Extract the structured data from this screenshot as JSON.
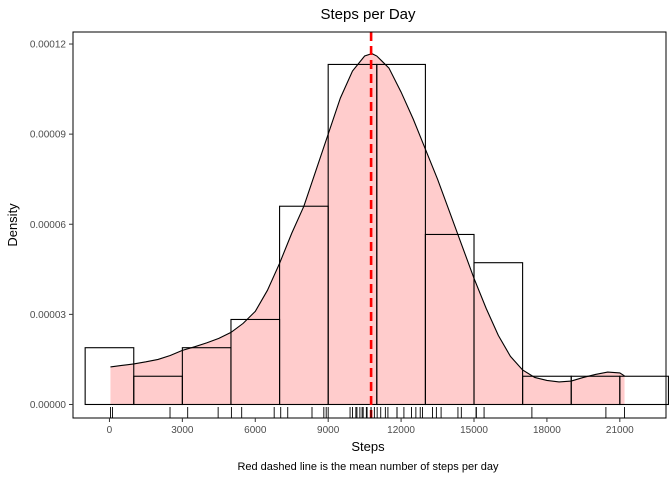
{
  "chart_data": {
    "type": "histogram",
    "title": "Steps per Day",
    "xlabel": "Steps",
    "ylabel": "Density",
    "caption": "Red dashed line is the mean number of steps per day",
    "xlim": [
      -1500,
      22900
    ],
    "ylim": [
      -4.5e-06,
      0.000124
    ],
    "x_ticks": [
      0,
      3000,
      6000,
      9000,
      12000,
      15000,
      18000,
      21000
    ],
    "x_tick_labels": [
      "0",
      "3000",
      "6000",
      "9000",
      "12000",
      "15000",
      "18000",
      "21000"
    ],
    "y_ticks": [
      0,
      3e-05,
      6e-05,
      9e-05,
      0.00012
    ],
    "y_tick_labels": [
      "0.00000",
      "0.00003",
      "0.00006",
      "0.00009",
      "0.00012"
    ],
    "histogram_bins": [
      {
        "x0": -1000,
        "x1": 1000,
        "density": 1.89e-05
      },
      {
        "x0": 1000,
        "x1": 3000,
        "density": 9.4e-06
      },
      {
        "x0": 3000,
        "x1": 5000,
        "density": 1.89e-05
      },
      {
        "x0": 5000,
        "x1": 7000,
        "density": 2.83e-05
      },
      {
        "x0": 7000,
        "x1": 9000,
        "density": 6.6e-05
      },
      {
        "x0": 9000,
        "x1": 11000,
        "density": 0.0001132
      },
      {
        "x0": 11000,
        "x1": 13000,
        "density": 0.0001132
      },
      {
        "x0": 13000,
        "x1": 15000,
        "density": 5.66e-05
      },
      {
        "x0": 15000,
        "x1": 17000,
        "density": 4.72e-05
      },
      {
        "x0": 17000,
        "x1": 19000,
        "density": 9.4e-06
      },
      {
        "x0": 19000,
        "x1": 21000,
        "density": 9.4e-06
      },
      {
        "x0": 21000,
        "x1": 23000,
        "density": 9.4e-06
      }
    ],
    "density_curve": {
      "x": [
        41,
        500,
        1000,
        1500,
        2000,
        2500,
        3000,
        3500,
        4000,
        4500,
        5000,
        5500,
        6000,
        6500,
        7000,
        7500,
        8000,
        8500,
        9000,
        9500,
        10000,
        10500,
        10800,
        11000,
        11500,
        12000,
        12500,
        13000,
        13500,
        14000,
        14500,
        15000,
        15500,
        16000,
        16500,
        17000,
        17500,
        18000,
        18500,
        19000,
        19500,
        20000,
        20500,
        21000,
        21194
      ],
      "y": [
        1.25e-05,
        1.3e-05,
        1.35e-05,
        1.42e-05,
        1.5e-05,
        1.63e-05,
        1.8e-05,
        1.92e-05,
        2.05e-05,
        2.2e-05,
        2.4e-05,
        2.7e-05,
        3.1e-05,
        3.8e-05,
        4.7e-05,
        5.7e-05,
        6.6e-05,
        7.8e-05,
        9e-05,
        0.000102,
        0.000111,
        0.000116,
        0.0001168,
        0.000116,
        0.000112,
        0.000104,
        9.5e-05,
        8.5e-05,
        7.5e-05,
        6.4e-05,
        5.3e-05,
        4.2e-05,
        3.2e-05,
        2.3e-05,
        1.6e-05,
        1.15e-05,
        9e-06,
        8e-06,
        7.5e-06,
        7.8e-06,
        9e-06,
        1e-05,
        1.08e-05,
        1.05e-05,
        9.5e-06
      ]
    },
    "mean_line": {
      "x": 10766,
      "color": "#ff0000",
      "style": "dashed"
    },
    "rug": [
      41,
      126,
      2492,
      3219,
      4472,
      5018,
      5441,
      6778,
      7047,
      7336,
      8334,
      8821,
      8918,
      9000,
      9900,
      10000,
      10139,
      10183,
      10304,
      10395,
      10439,
      10571,
      10600,
      10765,
      10766,
      10900,
      11015,
      11162,
      11352,
      11458,
      11829,
      11834,
      12116,
      12426,
      12608,
      12787,
      12883,
      13294,
      13452,
      13646,
      14339,
      14478,
      15084,
      15098,
      15414,
      17382,
      20427,
      21194
    ],
    "fill_color": "#ffcccc",
    "grid": false,
    "legend": "none"
  }
}
